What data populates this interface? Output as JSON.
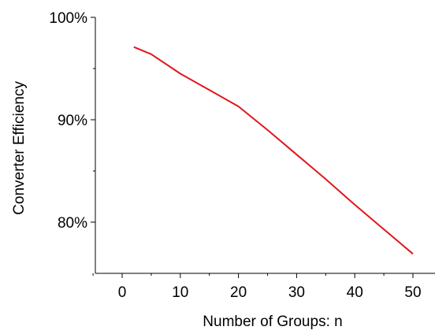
{
  "chart_data": {
    "type": "line",
    "title": "",
    "xlabel": "Number of Groups: n",
    "ylabel": "Converter Efficiency",
    "xlim": [
      -5,
      52
    ],
    "ylim": [
      75,
      100
    ],
    "xticks": [
      0,
      10,
      20,
      30,
      40,
      50
    ],
    "xtick_labels": [
      "0",
      "10",
      "20",
      "30",
      "40",
      "50"
    ],
    "yticks": [
      80,
      90,
      100
    ],
    "ytick_labels": [
      "80%",
      "90%",
      "100%"
    ],
    "grid": false,
    "legend": "none",
    "series": [
      {
        "color": "#e0161c",
        "x": [
          2,
          5,
          10,
          15,
          20,
          25,
          30,
          35,
          40,
          45,
          50
        ],
        "y": [
          97.1,
          96.4,
          94.5,
          92.9,
          91.3,
          89.0,
          86.6,
          84.2,
          81.7,
          79.3,
          76.9
        ]
      }
    ]
  }
}
